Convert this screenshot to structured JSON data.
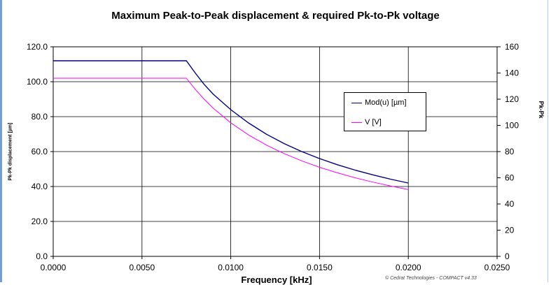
{
  "chart_data": {
    "type": "line",
    "title": "Maximum Peak-to-Peak displacement & required Pk-to-Pk voltage",
    "xlabel": "Frequency [kHz]",
    "ylabel": "Pk-Pk displacement [µm]",
    "y2label": "Pk-Pk",
    "credit": "© Cedrat Technologies - COMPACT v4.33",
    "xlim": [
      0,
      0.025
    ],
    "ylim": [
      0,
      120
    ],
    "y2lim": [
      0,
      160
    ],
    "x_ticks": [
      "0.0000",
      "0.0050",
      "0.0100",
      "0.0150",
      "0.0200",
      "0.0250"
    ],
    "y_ticks": [
      "0.0",
      "20.0",
      "40.0",
      "60.0",
      "80.0",
      "100.0",
      "120.0"
    ],
    "y2_ticks": [
      "0",
      "20",
      "40",
      "60",
      "80",
      "100",
      "120",
      "140",
      "160"
    ],
    "grid": true,
    "legend": "right",
    "series": [
      {
        "name": "Mod(u) [µm]",
        "axis": "left",
        "color": "#000080",
        "points": [
          [
            0,
            112
          ],
          [
            0.0075,
            112
          ],
          [
            0.008,
            105
          ],
          [
            0.0085,
            98.5
          ],
          [
            0.009,
            93
          ],
          [
            0.01,
            84
          ],
          [
            0.011,
            76.4
          ],
          [
            0.012,
            70
          ],
          [
            0.013,
            64.6
          ],
          [
            0.014,
            60
          ],
          [
            0.015,
            56
          ],
          [
            0.016,
            52.5
          ],
          [
            0.017,
            49.4
          ],
          [
            0.018,
            46.7
          ],
          [
            0.019,
            44.2
          ],
          [
            0.02,
            42
          ]
        ]
      },
      {
        "name": "V [V]",
        "axis": "right",
        "color": "#ff00ff",
        "points": [
          [
            0,
            136
          ],
          [
            0.0075,
            136
          ],
          [
            0.008,
            127.5
          ],
          [
            0.0085,
            120
          ],
          [
            0.009,
            113.3
          ],
          [
            0.01,
            102
          ],
          [
            0.011,
            92.7
          ],
          [
            0.012,
            85
          ],
          [
            0.013,
            78.5
          ],
          [
            0.014,
            72.9
          ],
          [
            0.015,
            68
          ],
          [
            0.016,
            63.8
          ],
          [
            0.017,
            60
          ],
          [
            0.018,
            56.7
          ],
          [
            0.019,
            53.7
          ],
          [
            0.02,
            51
          ]
        ]
      }
    ]
  }
}
